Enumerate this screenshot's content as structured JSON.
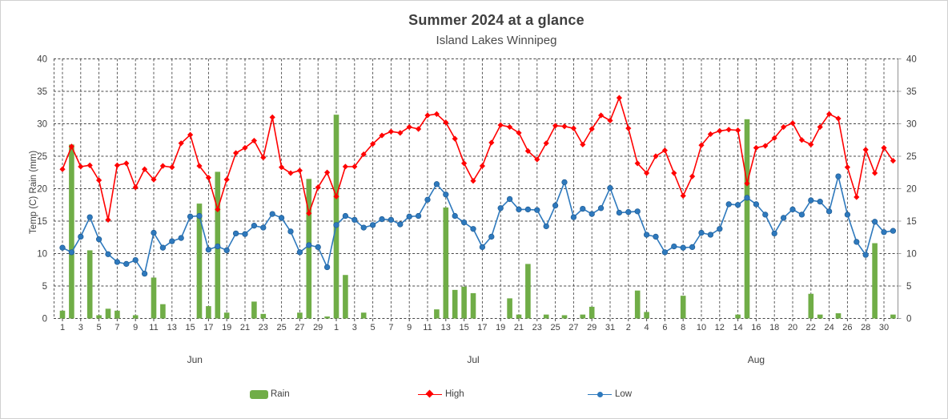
{
  "title": "Summer 2024 at a glance",
  "subtitle": "Island Lakes Winnipeg",
  "y_axis_title": "Temp (C) Rain (mm)",
  "colors": {
    "rain": "#70AD47",
    "high": "#FF0000",
    "low": "#2E79BD",
    "grid": "#474747",
    "axis_line": "#9e9e9e",
    "text": "#3f3f3f"
  },
  "legend": [
    {
      "label": "Rain",
      "type": "bar"
    },
    {
      "label": "High",
      "type": "line-diamond"
    },
    {
      "label": "Low",
      "type": "line-circle"
    }
  ],
  "chart_data": {
    "type": "combo",
    "title": "Summer 2024 at a glance",
    "subtitle": "Island Lakes Winnipeg",
    "ylabel": "Temp (C) Rain (mm)",
    "ylim": [
      0,
      40
    ],
    "y_ticks": [
      40,
      35,
      30,
      25,
      20,
      15,
      10,
      5,
      0
    ],
    "grid": "dashed",
    "legend_position": "bottom",
    "months": [
      {
        "label": "Jun",
        "days": 30,
        "day_labels": [
          1,
          3,
          5,
          7,
          9,
          11,
          13,
          15,
          17,
          19,
          21,
          23,
          25,
          27,
          29
        ]
      },
      {
        "label": "Jul",
        "days": 31,
        "day_labels": [
          1,
          3,
          5,
          7,
          9,
          11,
          13,
          15,
          17,
          19,
          21,
          23,
          25,
          27,
          29,
          31
        ]
      },
      {
        "label": "Aug",
        "days": 31,
        "day_labels": [
          2,
          4,
          6,
          8,
          10,
          12,
          14,
          16,
          18,
          20,
          22,
          24,
          26,
          28,
          30
        ]
      }
    ],
    "series": [
      {
        "name": "Rain",
        "type": "bar",
        "color": "#70AD47",
        "unit": "mm",
        "values": [
          1.2,
          26.8,
          0,
          10.5,
          0.5,
          1.5,
          1.2,
          0,
          0.5,
          0,
          6.3,
          2.2,
          0,
          0,
          0,
          17.7,
          1.9,
          22.6,
          0.9,
          0,
          0,
          2.6,
          0.7,
          0,
          0,
          0,
          0.9,
          21.5,
          0,
          0.3,
          31.4,
          6.7,
          0,
          0.9,
          0,
          0,
          0,
          0,
          0,
          0,
          0,
          1.4,
          17.1,
          4.4,
          4.9,
          3.9,
          0,
          0,
          0,
          3.1,
          0.6,
          8.4,
          0,
          0.6,
          0,
          0.5,
          0,
          0.6,
          1.8,
          0,
          0,
          0,
          0,
          4.3,
          1.0,
          0,
          0,
          0,
          3.5,
          0,
          0,
          0,
          0,
          0,
          0.6,
          30.7,
          0,
          0,
          0,
          0,
          0,
          0,
          3.8,
          0.6,
          0,
          0.8,
          0,
          0,
          0,
          11.6,
          0,
          0.6
        ]
      },
      {
        "name": "High",
        "type": "line",
        "marker": "diamond",
        "color": "#FF0000",
        "unit": "C",
        "values": [
          23.0,
          26.5,
          23.4,
          23.6,
          21.3,
          15.2,
          23.6,
          23.9,
          20.2,
          23.0,
          21.4,
          23.5,
          23.3,
          27.0,
          28.3,
          23.5,
          21.7,
          16.8,
          21.4,
          25.5,
          26.3,
          27.4,
          24.8,
          31.0,
          23.3,
          22.4,
          22.8,
          16.2,
          20.2,
          22.5,
          18.8,
          23.4,
          23.4,
          25.3,
          26.9,
          28.2,
          28.8,
          28.6,
          29.5,
          29.2,
          31.3,
          31.5,
          30.2,
          27.7,
          23.9,
          21.2,
          23.5,
          27.1,
          29.8,
          29.5,
          28.6,
          25.8,
          24.5,
          27.0,
          29.7,
          29.6,
          29.3,
          26.8,
          29.2,
          31.3,
          30.5,
          34.0,
          29.3,
          23.9,
          22.4,
          25.0,
          25.9,
          22.4,
          18.9,
          21.9,
          26.7,
          28.4,
          28.9,
          29.1,
          29.0,
          20.8,
          26.3,
          26.6,
          27.8,
          29.5,
          30.1,
          27.5,
          26.8,
          29.5,
          31.5,
          30.8,
          23.3,
          18.7,
          26.0,
          22.4,
          26.3,
          24.3
        ]
      },
      {
        "name": "Low",
        "type": "line",
        "marker": "circle",
        "color": "#2E79BD",
        "unit": "C",
        "values": [
          10.9,
          10.2,
          12.6,
          15.6,
          12.2,
          9.9,
          8.7,
          8.4,
          9.0,
          6.9,
          13.2,
          10.9,
          11.9,
          12.4,
          15.7,
          15.8,
          10.6,
          11.1,
          10.5,
          13.1,
          13.0,
          14.3,
          14.0,
          16.1,
          15.5,
          13.4,
          10.2,
          11.3,
          11.0,
          7.9,
          14.4,
          15.8,
          15.2,
          14.0,
          14.4,
          15.3,
          15.2,
          14.5,
          15.7,
          15.8,
          18.3,
          20.7,
          19.1,
          15.8,
          14.8,
          13.8,
          11.0,
          12.6,
          17.0,
          18.4,
          16.8,
          16.8,
          16.7,
          14.2,
          17.4,
          21.0,
          15.6,
          16.9,
          16.1,
          17.0,
          20.1,
          16.3,
          16.4,
          16.5,
          12.9,
          12.6,
          10.2,
          11.1,
          10.9,
          11.0,
          13.2,
          12.9,
          13.8,
          17.6,
          17.5,
          18.6,
          17.6,
          16.0,
          13.1,
          15.5,
          16.8,
          16.0,
          18.2,
          18.0,
          16.5,
          21.9,
          16.0,
          11.8,
          9.8,
          14.9,
          13.3,
          13.5
        ]
      }
    ]
  }
}
